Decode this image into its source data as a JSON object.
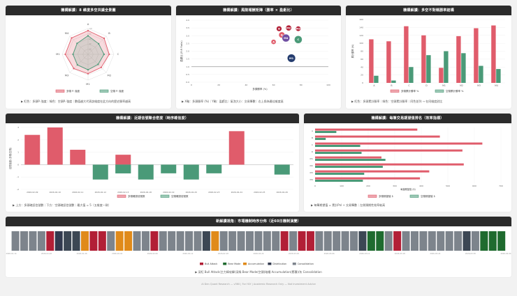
{
  "colors": {
    "red": "#e05c6b",
    "green": "#4a9a78",
    "gray": "#7d848c",
    "navy": "#323a4f",
    "orange": "#e08a1a",
    "darkred": "#b21f36",
    "darkgreen": "#1f6b2f",
    "slate": "#3c4754",
    "bubble_navy": "#243c6e",
    "bubble_purple": "#6f4ea2"
  },
  "panels": {
    "radar": {
      "title": "機構解讀：8 維度多空共識全景圖",
      "note": "▶ 紅色：多頭Pᵢ 強度｜綠色：空頭Pᵢ 強度｜數值越大代表該維度在此方向的歷史勝率越高"
    },
    "risk": {
      "title": "機構解讀：風險報酬矩陣（勝率 × 盈虧比）",
      "note": "▶ X軸：多頭勝率 (%)｜Y軸：盈虧比｜氣泡大小：交易筆數｜右上角為最佳維度區"
    },
    "winrate": {
      "title": "機構解讀：多空不對稱勝率結構",
      "note": "▶ 紅色：多頭累計勝率｜綠色：空頭累計勝率｜同色並列 → 在同維度對比"
    },
    "density": {
      "title": "機構解讀：近期信號聚合密度（時序確信度）",
      "note": "▶ 上方：多頭確認信號數｜下方：空頭確認信號數｜最大值 = 5（五維度一致）"
    },
    "expect": {
      "title": "機構解讀：每筆交易期望值排名（效率指標）",
      "note": "▶ 每筆期望值 = 累計Pnl ÷ 交易筆數｜左側預期性效率較高"
    },
    "regime": {
      "title": "新解讀視角：市場機制時序分佈（近60日機制演變）",
      "note": "▶ 深紅 Bull Attack(主力棒攻擊)深綠 Bear Mode(空頭)暗橘 Accumulation(累積)/灰 Consolidation"
    }
  },
  "footer": "Al Den Quant Research — v360 | For HLY | Academic Research Only — Not Investment Advice",
  "chart_data": [
    {
      "type": "radar",
      "categories": [
        "A",
        "B",
        "C",
        "M2",
        "M1",
        "M3",
        "M1",
        "M4"
      ],
      "series": [
        {
          "name": "多頭 Pᵢ 強度",
          "values": [
            0.92,
            0.88,
            0.82,
            0.72,
            0.75,
            0.78,
            0.88,
            0.9
          ]
        },
        {
          "name": "空頭 Pᵢ 強度",
          "values": [
            0.72,
            0.58,
            0.62,
            0.55,
            0.6,
            0.58,
            0.58,
            0.6
          ]
        }
      ],
      "ticks": [
        "20",
        "40",
        "60",
        "80",
        "100"
      ]
    },
    {
      "type": "scatter",
      "title": "風險報酬矩陣",
      "xlabel": "多頭勝率 (%)",
      "ylabel": "盈虧比 (R:R Ratio)",
      "xlim": [
        0,
        100
      ],
      "ylim": [
        0,
        4
      ],
      "xticks": [
        "0",
        "20",
        "40",
        "60",
        "80",
        "100"
      ],
      "yticks": [
        "0.0",
        "0.5",
        "1.0",
        "1.5",
        "2.0",
        "2.5",
        "3.0",
        "3.5",
        "4.0"
      ],
      "points": [
        {
          "label": "B",
          "x": 64,
          "y": 3.45,
          "r": 3.8,
          "color": "darkred"
        },
        {
          "label": "M2",
          "x": 71,
          "y": 3.5,
          "r": 4,
          "color": "darkred"
        },
        {
          "label": "M3",
          "x": 78,
          "y": 3.45,
          "r": 3.6,
          "color": "darkred"
        },
        {
          "label": "B",
          "x": 66,
          "y": 3.05,
          "r": 4.3,
          "color": "red"
        },
        {
          "label": "M4",
          "x": 69,
          "y": 2.85,
          "r": 5.5,
          "color": "bubble_purple"
        },
        {
          "label": "C",
          "x": 78,
          "y": 2.75,
          "r": 5.5,
          "color": "green"
        },
        {
          "label": "A",
          "x": 60,
          "y": 2.6,
          "r": 3.5,
          "color": "red"
        },
        {
          "label": "M1",
          "x": 73,
          "y": 1.55,
          "r": 5.8,
          "color": "bubble_navy"
        }
      ],
      "reference_y": 1.0
    },
    {
      "type": "bar",
      "categories": [
        "A",
        "B",
        "C",
        "D",
        "M1",
        "M2",
        "M3",
        "M4"
      ],
      "ylabel": "累計勝率 (%)",
      "ylim": [
        0,
        160
      ],
      "yticks": [
        "0",
        "20",
        "40",
        "60",
        "80",
        "100",
        "120",
        "140",
        "160"
      ],
      "series": [
        {
          "name": "多頭累計勝率 %",
          "values": [
            110,
            105,
            143,
            120,
            38,
            118,
            138,
            145
          ]
        },
        {
          "name": "空頭累計勝率 %",
          "values": [
            18,
            6,
            40,
            70,
            80,
            75,
            43,
            35
          ]
        }
      ]
    },
    {
      "type": "bar",
      "ylabel": "信號強度 (多頭/空頭)",
      "ylim": [
        -2,
        3
      ],
      "yticks": [
        "-2",
        "-1",
        "0",
        "1",
        "2",
        "3"
      ],
      "categories": [
        "2026-02-09",
        "2026-02-10",
        "2026-02-11",
        "2026-02-12",
        "2026-02-13",
        "2026-02-18",
        "2026-02-19",
        "2026-02-20",
        "2026-02-23",
        "2026-02-24",
        "2026-02-25",
        "2026-02-26"
      ],
      "series": [
        {
          "name": "多頭確認信號數",
          "values": [
            2.4,
            3,
            1.2,
            0,
            0.8,
            0,
            0,
            0,
            0,
            2.7,
            0,
            0
          ]
        },
        {
          "name": "空頭確認信號數",
          "values": [
            0,
            0,
            0,
            -1.2,
            -0.7,
            -1.2,
            -0.7,
            -1.2,
            -0.7,
            0,
            0,
            -0.8
          ]
        }
      ],
      "markers": [
        {
          "category": "2026-02-13",
          "value": -0.7
        }
      ]
    },
    {
      "type": "bar",
      "orientation": "horizontal",
      "categories": [
        "A",
        "B",
        "C",
        "D",
        "M1",
        "M2",
        "M3",
        "M4"
      ],
      "xlabel": "每筆期望值 ($)",
      "xlim": [
        0,
        700
      ],
      "xticks": [
        "0",
        "100",
        "200",
        "300",
        "400",
        "500",
        "600",
        "700"
      ],
      "series": [
        {
          "name": "多頭期望值 $",
          "values": [
            385,
            470,
            630,
            555,
            250,
            560,
            430,
            395
          ]
        },
        {
          "name": "空頭期望值 $",
          "values": [
            80,
            40,
            170,
            175,
            265,
            255,
            185,
            180
          ]
        }
      ]
    },
    {
      "type": "heatmap",
      "title": "市場機制時序分佈",
      "dates": [
        "2026-01-14",
        "2026-01-20",
        "2026-01-26",
        "2026-02-02",
        "2026-02-06",
        "2026-02-12",
        "2026-02-18",
        "2026-02-24",
        "2026-03-02",
        "2026-03-06",
        "2026-03-12",
        "2026-03-18",
        "2026-03-24",
        "2026-03-30",
        "2026-04-04"
      ],
      "legend": [
        {
          "name": "Bull Attack",
          "key": "darkred"
        },
        {
          "name": "Bear Mode",
          "key": "darkgreen"
        },
        {
          "name": "Accumulation",
          "key": "orange"
        },
        {
          "name": "Distribution",
          "key": "navy"
        },
        {
          "name": "Consolidation",
          "key": "gray"
        }
      ],
      "states": [
        "gray",
        "gray",
        "gray",
        "gray",
        "darkred",
        "navy",
        "slate",
        "slate",
        "orange",
        "darkred",
        "darkred",
        "gray",
        "orange",
        "orange",
        "gray",
        "gray",
        "darkred",
        "gray",
        "gray",
        "gray",
        "gray",
        "gray",
        "slate",
        "orange",
        "gray",
        "gray",
        "gray",
        "gray",
        "gray",
        "gray",
        "gray",
        "darkred",
        "gray",
        "darkred",
        "darkred",
        "gray",
        "gray",
        "gray",
        "gray",
        "gray",
        "slate",
        "darkgreen",
        "darkgreen",
        "gray",
        "darkred",
        "gray",
        "gray",
        "gray",
        "gray",
        "gray",
        "gray",
        "gray",
        "slate",
        "gray",
        "darkgreen",
        "darkgreen",
        "darkgreen"
      ]
    }
  ]
}
